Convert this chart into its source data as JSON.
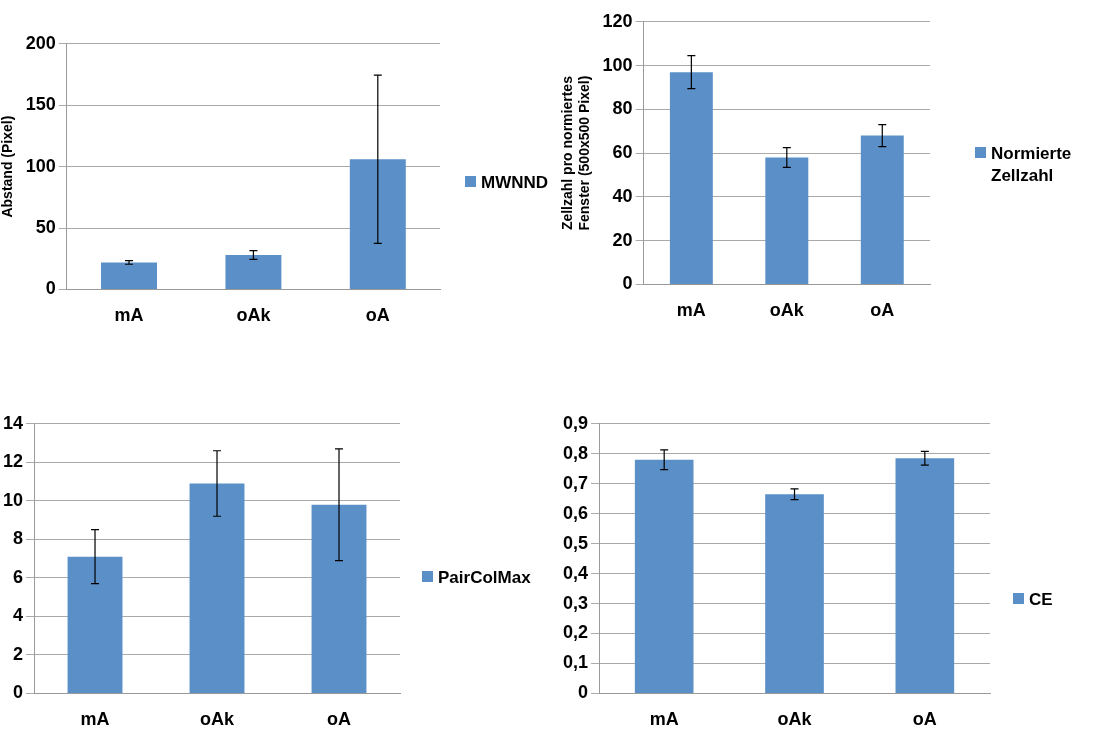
{
  "chart_data": [
    {
      "type": "bar",
      "ylabel": "Abstand (Pixel)",
      "categories": [
        "mA",
        "oAk",
        "oA"
      ],
      "series": [
        {
          "name": "MWNND",
          "color": "#5b8fc7",
          "values": [
            22,
            28,
            106
          ],
          "errors": [
            1.5,
            3.5,
            68.5
          ]
        }
      ],
      "ylim": [
        0,
        200
      ],
      "yticks": [
        0,
        50,
        100,
        150,
        200
      ],
      "grid": "y",
      "legend": "right"
    },
    {
      "type": "bar",
      "ylabel": "Zellzahl pro normiertes Fenster (500x500 Pixel)",
      "categories": [
        "mA",
        "oAk",
        "oA"
      ],
      "series": [
        {
          "name": "Normierte Zellzahl",
          "color": "#5b8fc7",
          "values": [
            97,
            58,
            68
          ],
          "errors": [
            7.5,
            4.5,
            5
          ]
        }
      ],
      "ylim": [
        0,
        120
      ],
      "yticks": [
        0,
        20,
        40,
        60,
        80,
        100,
        120
      ],
      "grid": "y",
      "legend": "right"
    },
    {
      "type": "bar",
      "categories": [
        "mA",
        "oAk",
        "oA"
      ],
      "series": [
        {
          "name": "PairColMax",
          "color": "#5b8fc7",
          "values": [
            7.1,
            10.9,
            9.8
          ],
          "errors": [
            1.4,
            1.7,
            2.9
          ]
        }
      ],
      "ylim": [
        0,
        14
      ],
      "yticks": [
        0,
        2,
        4,
        6,
        8,
        10,
        12,
        14
      ],
      "grid": "y",
      "legend": "right"
    },
    {
      "type": "bar",
      "categories": [
        "mA",
        "oAk",
        "oA"
      ],
      "series": [
        {
          "name": "CE",
          "color": "#5b8fc7",
          "values": [
            0.78,
            0.665,
            0.785
          ],
          "errors": [
            0.033,
            0.018,
            0.023
          ]
        }
      ],
      "ylim": [
        0,
        0.9
      ],
      "yticks": [
        0,
        {
          "value": 0.1,
          "label": "0,1"
        },
        {
          "value": 0.2,
          "label": "0,2"
        },
        {
          "value": 0.3,
          "label": "0,3"
        },
        {
          "value": 0.4,
          "label": "0,4"
        },
        {
          "value": 0.5,
          "label": "0,5"
        },
        {
          "value": 0.6,
          "label": "0,6"
        },
        {
          "value": 0.7,
          "label": "0,7"
        },
        {
          "value": 0.8,
          "label": "0,8"
        },
        {
          "value": 0.9,
          "label": "0,9"
        }
      ],
      "grid": "y",
      "legend": "right"
    }
  ]
}
